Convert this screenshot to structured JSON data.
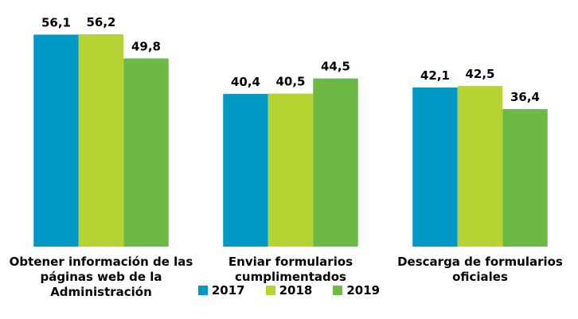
{
  "chart_data": {
    "type": "bar",
    "categories": [
      "Obtener información de las páginas web de la Administración",
      "Enviar formularios cumplimentados",
      "Descarga de formularios oficiales"
    ],
    "series": [
      {
        "name": "2017",
        "color": "#0099c6",
        "values": [
          56.1,
          40.4,
          42.1
        ],
        "value_labels": [
          "56,1",
          "40,4",
          "42,1"
        ]
      },
      {
        "name": "2018",
        "color": "#b6d334",
        "values": [
          56.2,
          40.5,
          42.5
        ],
        "value_labels": [
          "56,2",
          "40,5",
          "42,5"
        ]
      },
      {
        "name": "2019",
        "color": "#6cb946",
        "values": [
          49.8,
          44.5,
          36.4
        ],
        "value_labels": [
          "49,8",
          "44,5",
          "36,4"
        ]
      }
    ],
    "ylim": [
      0,
      60
    ],
    "legend": "bottom"
  }
}
